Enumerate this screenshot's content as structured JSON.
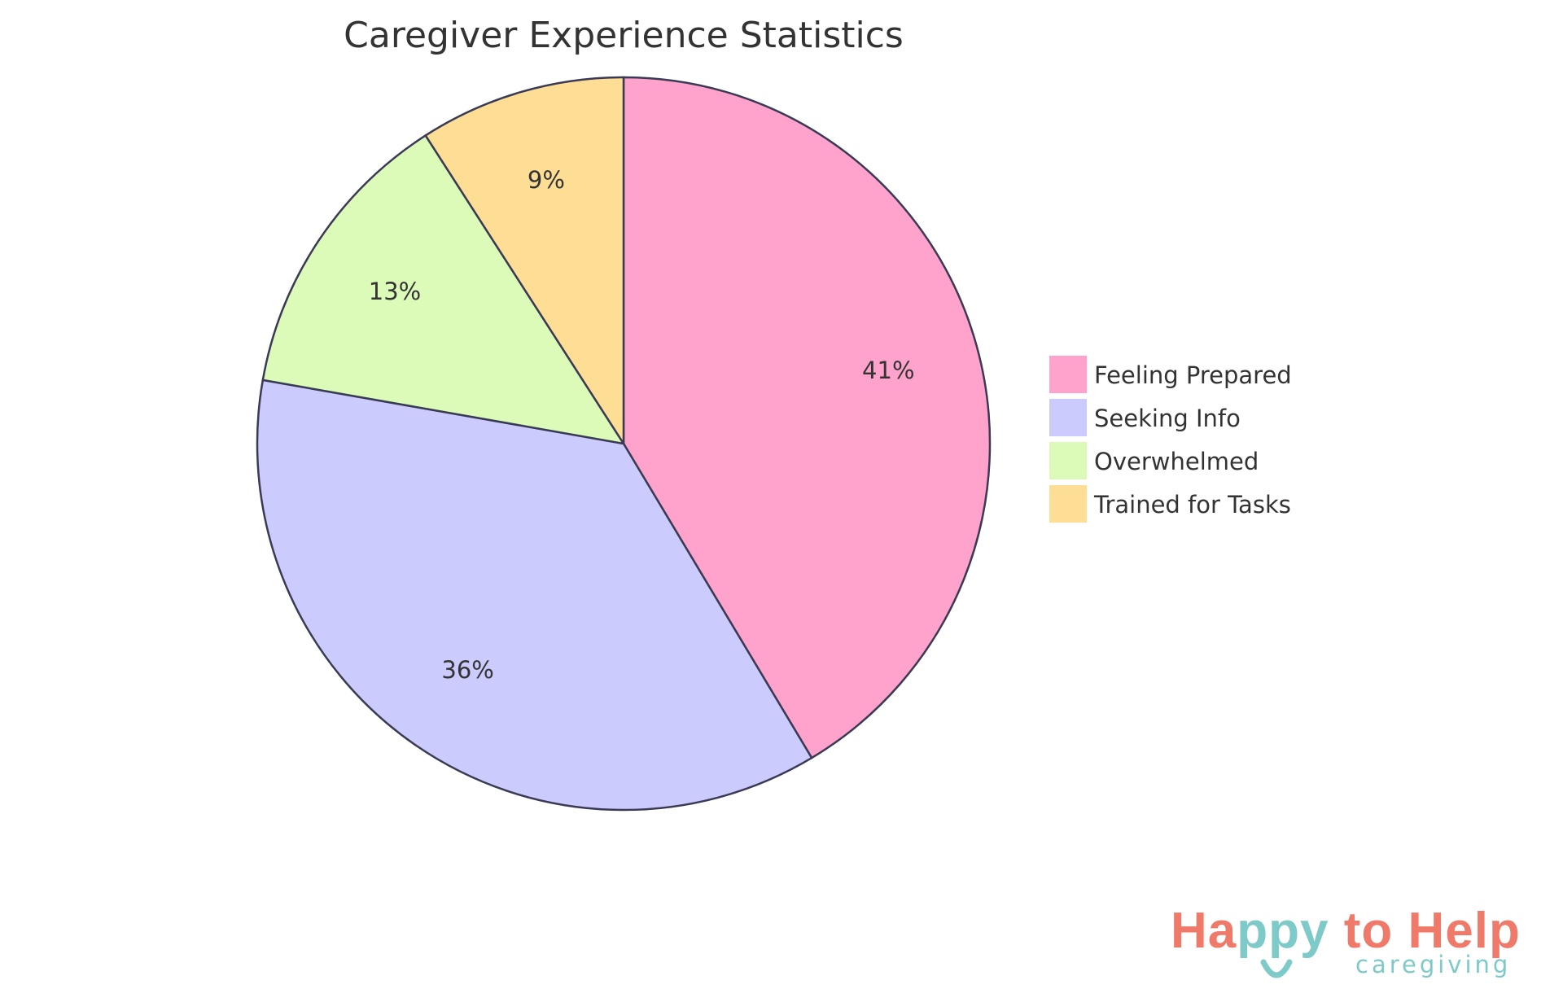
{
  "chart_data": {
    "type": "pie",
    "title": "Caregiver Experience Statistics",
    "categories": [
      "Feeling Prepared",
      "Seeking Info",
      "Overwhelmed",
      "Trained for Tasks"
    ],
    "values": [
      41,
      36,
      13,
      9
    ],
    "labels": [
      "41%",
      "36%",
      "13%",
      "9%"
    ],
    "colors": [
      "#ffa2cc",
      "#cbcbfe",
      "#dcfbb9",
      "#fede95"
    ],
    "stroke_color": "#3a3a55",
    "legend_position": "right",
    "start_angle": "top, clockwise"
  },
  "logo": {
    "text": "Happy to Help",
    "part1": "Ha",
    "part2": "ppy",
    "part3": " to Help",
    "subtext": "caregiving",
    "colors": {
      "coral": "#f07a6a",
      "teal": "#7ecac8"
    }
  }
}
